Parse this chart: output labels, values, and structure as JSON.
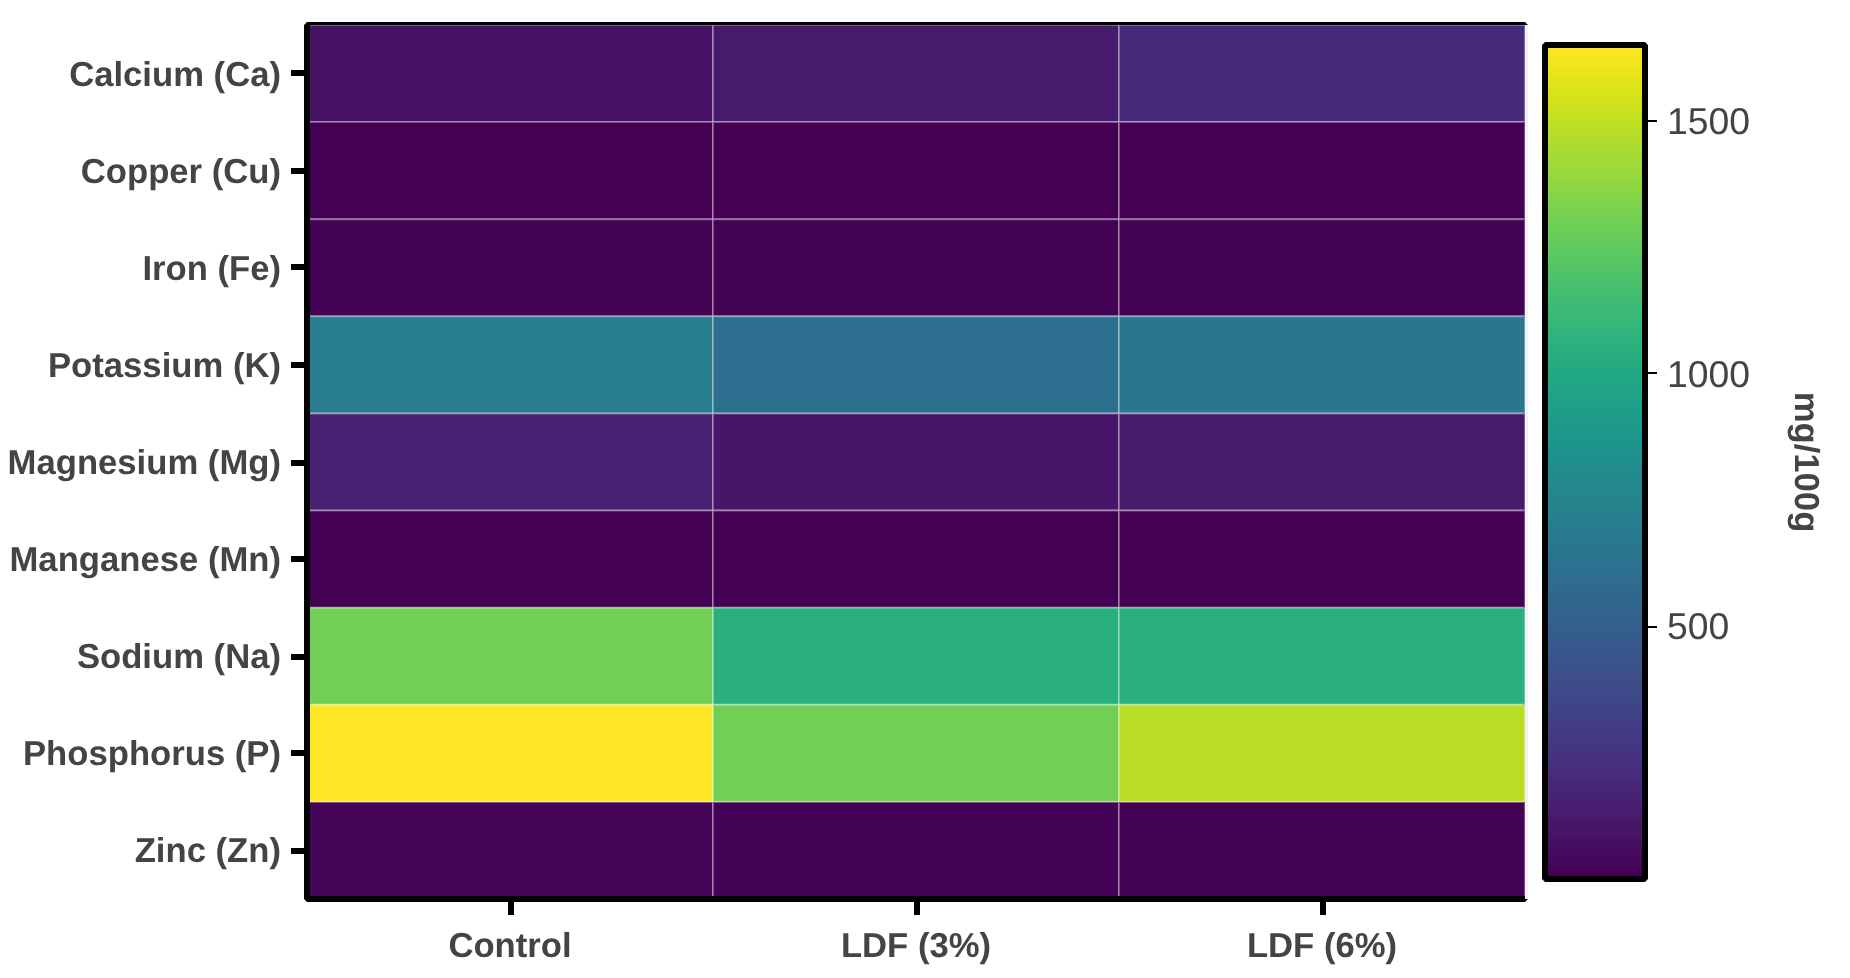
{
  "chart_data": {
    "type": "heatmap",
    "categories": [
      "Control",
      "LDF (3%)",
      "LDF (6%)"
    ],
    "y_categories": [
      "Calcium (Ca)",
      "Copper (Cu)",
      "Iron (Fe)",
      "Potassium (K)",
      "Magnesium (Mg)",
      "Manganese (Mn)",
      "Sodium (Na)",
      "Phosphorus (P)",
      "Zinc (Zn)"
    ],
    "cells": [
      [
        80,
        120,
        200
      ],
      [
        5,
        5,
        5
      ],
      [
        10,
        10,
        10
      ],
      [
        700,
        600,
        650
      ],
      [
        150,
        100,
        120
      ],
      [
        5,
        5,
        5
      ],
      [
        1300,
        1050,
        1050
      ],
      [
        1650,
        1300,
        1480
      ],
      [
        20,
        15,
        15
      ]
    ],
    "clim": [
      0,
      1650
    ],
    "cticks": [
      500,
      1000,
      1500
    ],
    "clabel": "mg/100g"
  }
}
